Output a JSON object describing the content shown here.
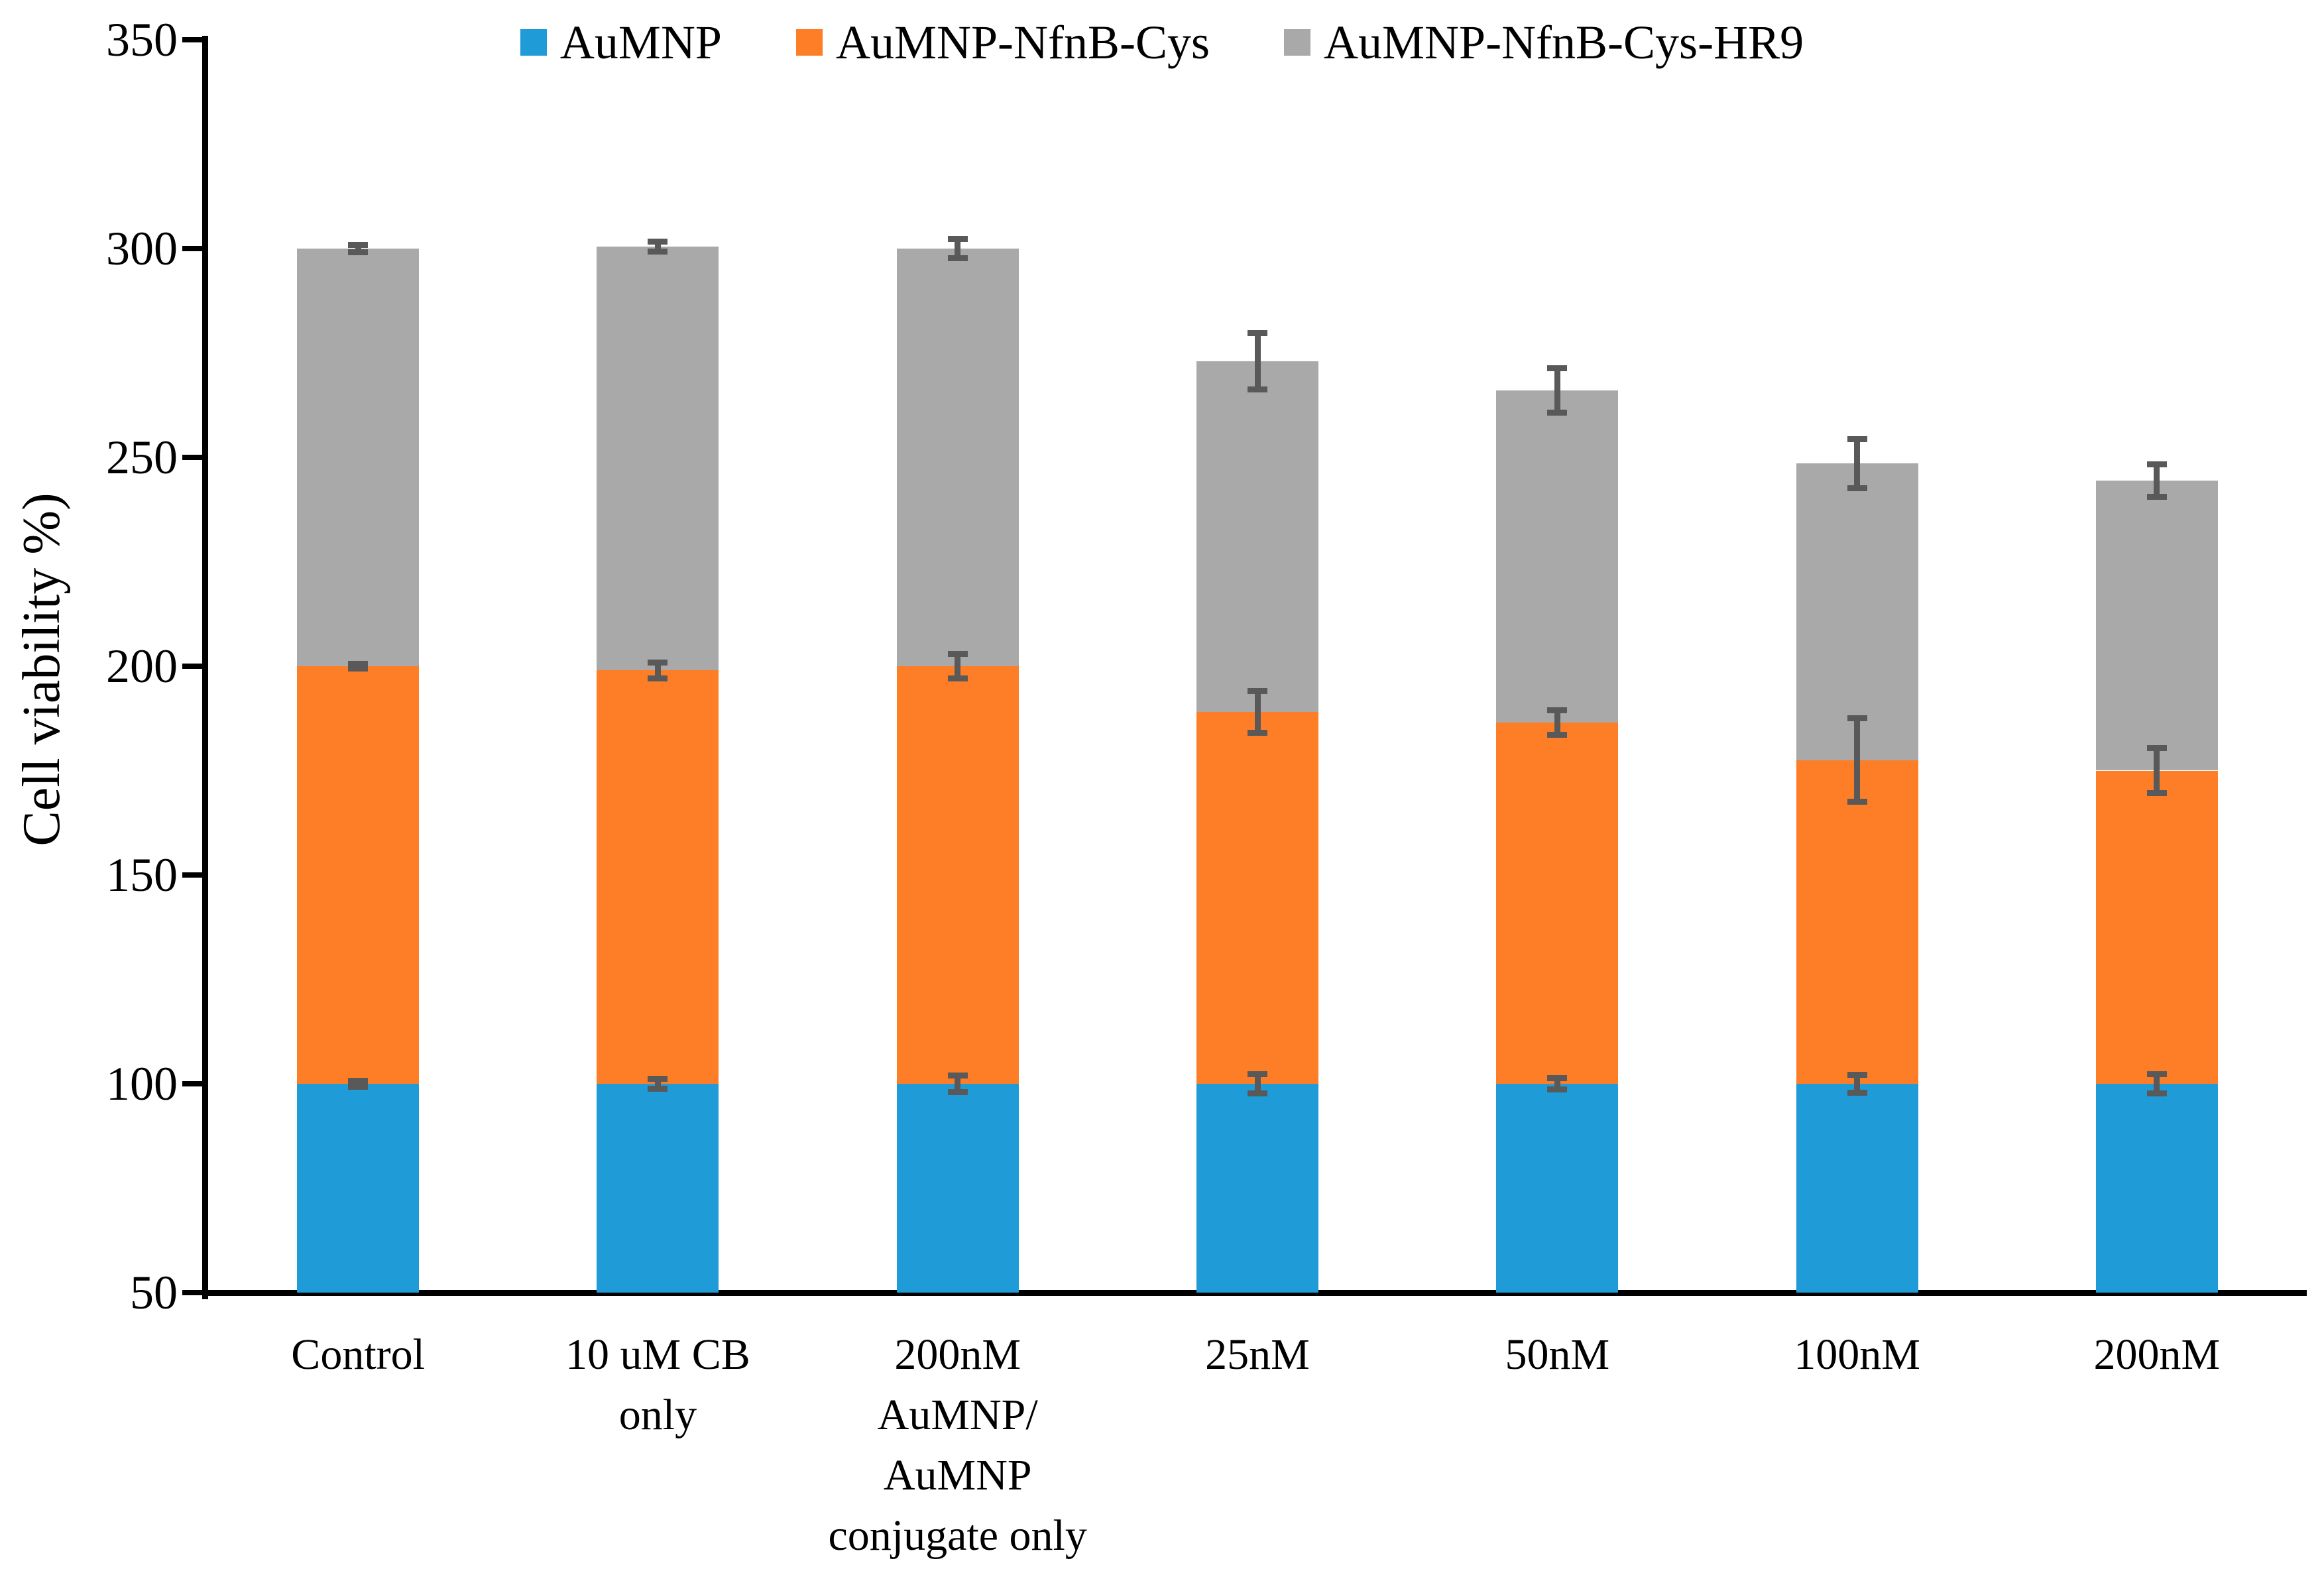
{
  "chart_data": {
    "type": "bar",
    "subtype": "stacked-vertical",
    "title": "",
    "ylabel": "Cell viability %)",
    "xlabel": "",
    "ylim": [
      50,
      350
    ],
    "yticks": [
      "350",
      "300",
      "250",
      "200",
      "150",
      "100",
      "50"
    ],
    "ytick_values": [
      350,
      300,
      250,
      200,
      150,
      100,
      50
    ],
    "grid": "off",
    "legend_position": "top-center",
    "categories": [
      "Control",
      "10 uM CB\nonly",
      "200nM\nAuMNP/\nAuMNP\nconjugate only",
      "25nM",
      "50nM",
      "100nM",
      "200nM"
    ],
    "series": [
      {
        "name": "AuMNP",
        "color": "#1F9BD7",
        "values": [
          100,
          100,
          100,
          100,
          100,
          100,
          100
        ],
        "errors": [
          0.7,
          1.2,
          2.0,
          2.3,
          1.4,
          2.1,
          2.3
        ]
      },
      {
        "name": "AuMNP-NfnB-Cys",
        "color": "#FD7E26",
        "values": [
          100,
          99,
          100,
          89,
          86.5,
          77.5,
          75
        ],
        "errors": [
          0.6,
          1.9,
          2.9,
          5.0,
          3.0,
          10.0,
          5.4
        ]
      },
      {
        "name": "AuMNP-NfnB-Cys-HR9",
        "color": "#A9A9A9",
        "values": [
          100,
          101.5,
          100,
          84,
          79.5,
          71,
          69.5
        ],
        "errors": [
          0.8,
          1.2,
          2.3,
          6.7,
          5.3,
          5.9,
          3.9
        ]
      }
    ],
    "stacked_totals": [
      300,
      300.5,
      300,
      273,
      266,
      248.5,
      244.5
    ],
    "error_bar_color": "#595959",
    "axis_color": "#000000"
  }
}
